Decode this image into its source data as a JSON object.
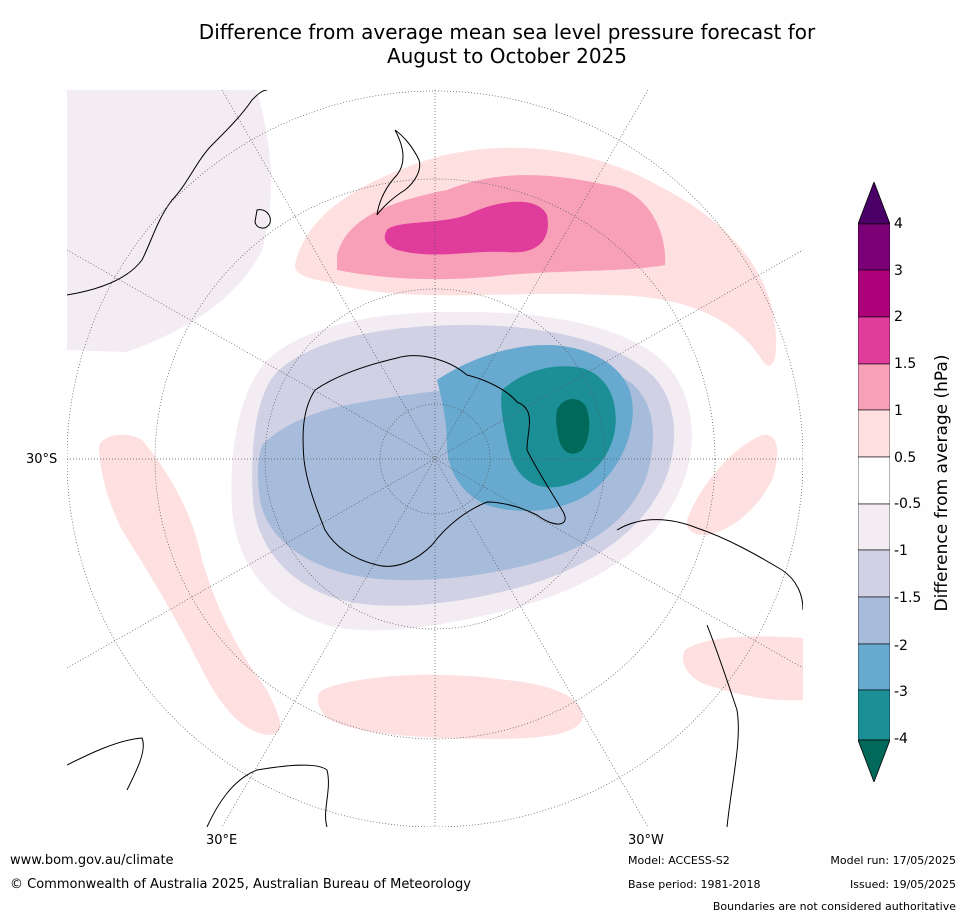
{
  "title_line1": "Difference from average mean sea level pressure forecast for",
  "title_line2": "August to October 2025",
  "colorbar": {
    "title": "Difference from average (hPa)",
    "ticks": [
      "4",
      "3",
      "2",
      "1.5",
      "1",
      "0.5",
      "-0.5",
      "-1",
      "-1.5",
      "-2",
      "-3",
      "-4"
    ],
    "colors": [
      "#4b0067",
      "#7b0078",
      "#ae0079",
      "#e03c9b",
      "#f8a0b8",
      "#fde0df",
      "#ffffff",
      "#f3ecf3",
      "#d0d1e5",
      "#a7bbdb",
      "#67a9cf",
      "#1c8f96",
      "#01695a"
    ]
  },
  "labels": {
    "lat_30s": "30°S",
    "lon_30e": "30°E",
    "lon_30w": "30°W"
  },
  "footer": {
    "website": "www.bom.gov.au/climate",
    "copyright": "© Commonwealth of Australia 2025, Australian Bureau of Meteorology",
    "model": "Model: ACCESS-S2",
    "model_run": "Model run: 17/05/2025",
    "base_period": "Base period: 1981-2018",
    "issued": "Issued: 19/05/2025",
    "disclaimer": "Boundaries are not considered authoritative"
  }
}
